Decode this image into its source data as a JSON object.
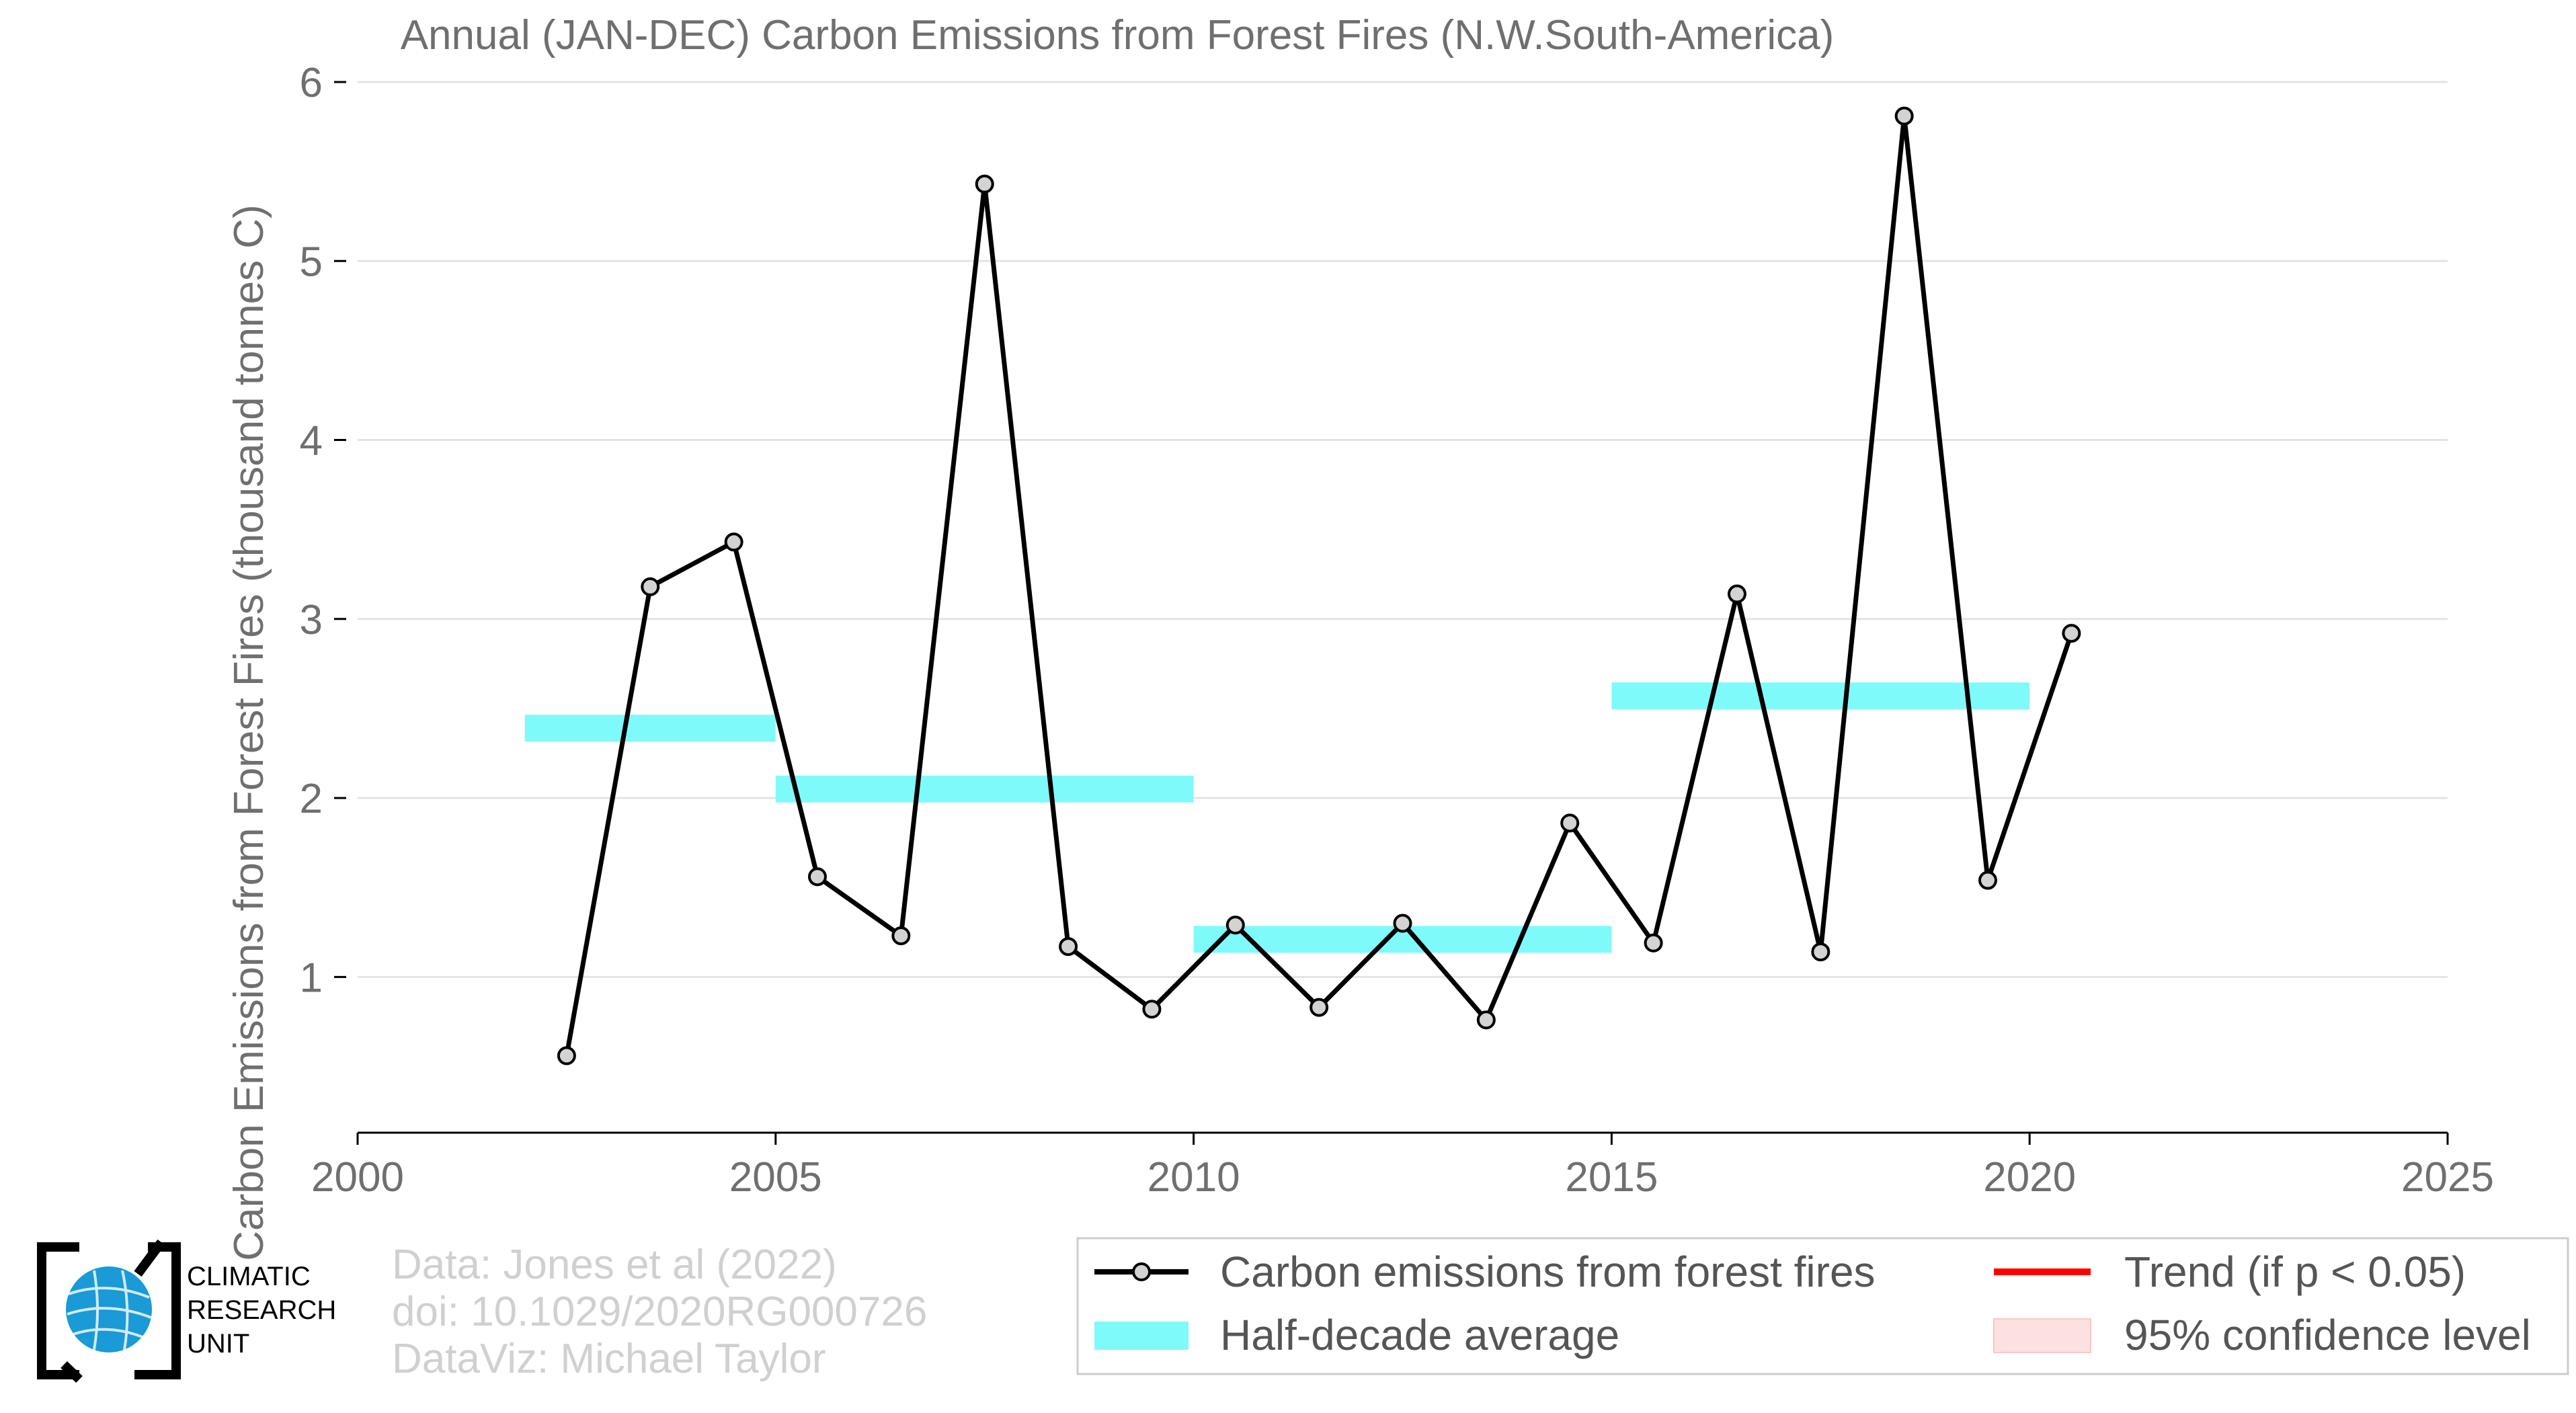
{
  "chart_data": {
    "type": "line",
    "title": "Annual (JAN-DEC) Carbon Emissions from Forest Fires (N.W.South-America)",
    "xlabel": "",
    "ylabel": "Carbon Emissions from Forest Fires (thousand tonnes C)",
    "xlim": [
      2000,
      2025
    ],
    "ylim": [
      0.13,
      6
    ],
    "xticks": [
      2000,
      2005,
      2010,
      2015,
      2020,
      2025
    ],
    "yticks": [
      1,
      2,
      3,
      4,
      5,
      6
    ],
    "grid": "horizontal",
    "legend_position": "bottom-right",
    "series": [
      {
        "name": "Carbon emissions from forest fires",
        "color": "#000000",
        "marker_fill": "#d3d3d3",
        "x": [
          2002.5,
          2003.5,
          2004.5,
          2005.5,
          2006.5,
          2007.5,
          2008.5,
          2009.5,
          2010.5,
          2011.5,
          2012.5,
          2013.5,
          2014.5,
          2015.5,
          2016.5,
          2017.5,
          2018.5,
          2019.5,
          2020.5
        ],
        "y": [
          0.56,
          3.18,
          3.43,
          1.56,
          1.23,
          5.43,
          1.17,
          0.82,
          1.29,
          0.83,
          1.3,
          0.76,
          1.86,
          1.19,
          3.14,
          1.14,
          5.81,
          1.54,
          2.92
        ]
      }
    ],
    "half_decade_average": {
      "name": "Half-decade average",
      "color": "#7ffafa",
      "segments": [
        {
          "x0": 2002,
          "x1": 2005,
          "y": 2.39
        },
        {
          "x0": 2005,
          "x1": 2010,
          "y": 2.05
        },
        {
          "x0": 2010,
          "x1": 2015,
          "y": 1.21
        },
        {
          "x0": 2015,
          "x1": 2020,
          "y": 2.57
        }
      ]
    },
    "legend": [
      {
        "label": "Carbon emissions from forest fires",
        "kind": "line-marker",
        "color": "#000000"
      },
      {
        "label": "Trend (if p < 0.05)",
        "kind": "line",
        "color": "#ff0000"
      },
      {
        "label": "Half-decade average",
        "kind": "band",
        "color": "#7ffafa"
      },
      {
        "label": "95% confidence level",
        "kind": "patch",
        "color": "#fde0e0"
      }
    ]
  },
  "credits": {
    "line1": "Data: Jones et al (2022)",
    "line2": "doi: 10.1029/2020RG000726",
    "line3": "DataViz: Michael Taylor"
  },
  "logo": {
    "line1": "CLIMATIC",
    "line2": "RESEARCH",
    "line3": "UNIT",
    "globe_color": "#1a9ad6"
  }
}
